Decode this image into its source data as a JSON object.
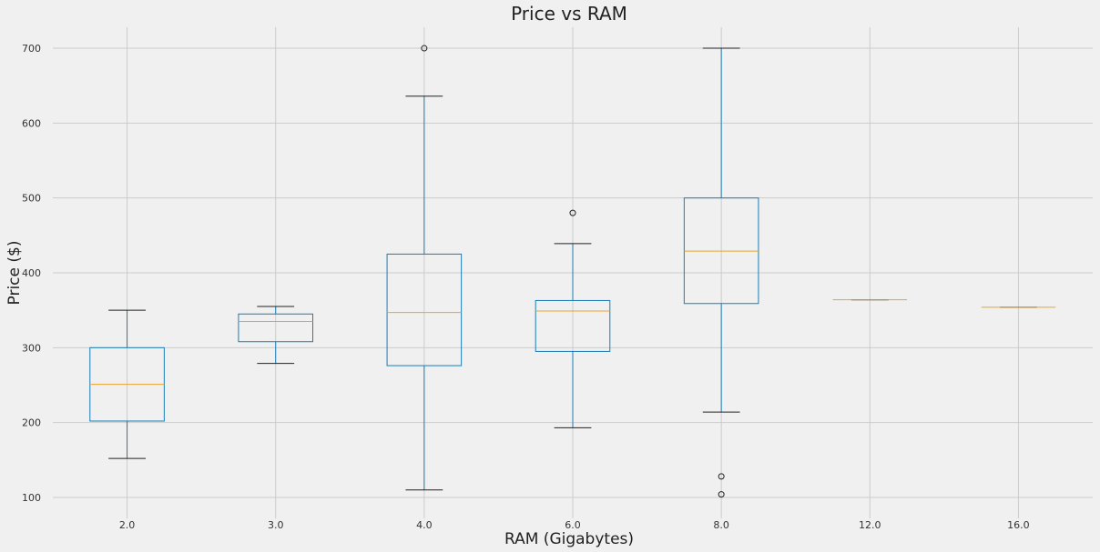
{
  "chart_data": {
    "type": "boxplot",
    "title": "Price vs RAM",
    "xlabel": "RAM (Gigabytes)",
    "ylabel": "Price ($)",
    "ylim": [
      72,
      728
    ],
    "yticks": [
      100,
      200,
      300,
      400,
      500,
      600,
      700
    ],
    "grid": true,
    "categories": [
      "2.0",
      "3.0",
      "4.0",
      "6.0",
      "8.0",
      "12.0",
      "16.0"
    ],
    "boxes": [
      {
        "category": "2.0",
        "whisker_low": 152,
        "q1": 202,
        "median": 251,
        "q3": 300,
        "whisker_high": 350,
        "outliers": []
      },
      {
        "category": "3.0",
        "whisker_low": 279,
        "q1": 308,
        "median": 335,
        "q3": 345,
        "whisker_high": 355,
        "outliers": []
      },
      {
        "category": "4.0",
        "whisker_low": 110,
        "q1": 276,
        "median": 347,
        "q3": 425,
        "whisker_high": 636,
        "outliers": [
          700
        ]
      },
      {
        "category": "6.0",
        "whisker_low": 193,
        "q1": 295,
        "median": 349,
        "q3": 363,
        "whisker_high": 439,
        "outliers": [
          480
        ]
      },
      {
        "category": "8.0",
        "whisker_low": 214,
        "q1": 359,
        "median": 429,
        "q3": 500,
        "whisker_high": 700,
        "outliers": [
          128,
          104
        ]
      },
      {
        "category": "12.0",
        "whisker_low": 364,
        "q1": 364,
        "median": 364,
        "q3": 364,
        "whisker_high": 364,
        "outliers": []
      },
      {
        "category": "16.0",
        "whisker_low": 354,
        "q1": 354,
        "median": 354,
        "q3": 354,
        "whisker_high": 354,
        "outliers": []
      }
    ],
    "colors": {
      "box": "#1f77b4",
      "box_stroke": "#1a7db5",
      "median": "#e8a530",
      "whisker_cap": "#222222",
      "outlier": "#222222",
      "grid": "#cbcbcb"
    }
  }
}
